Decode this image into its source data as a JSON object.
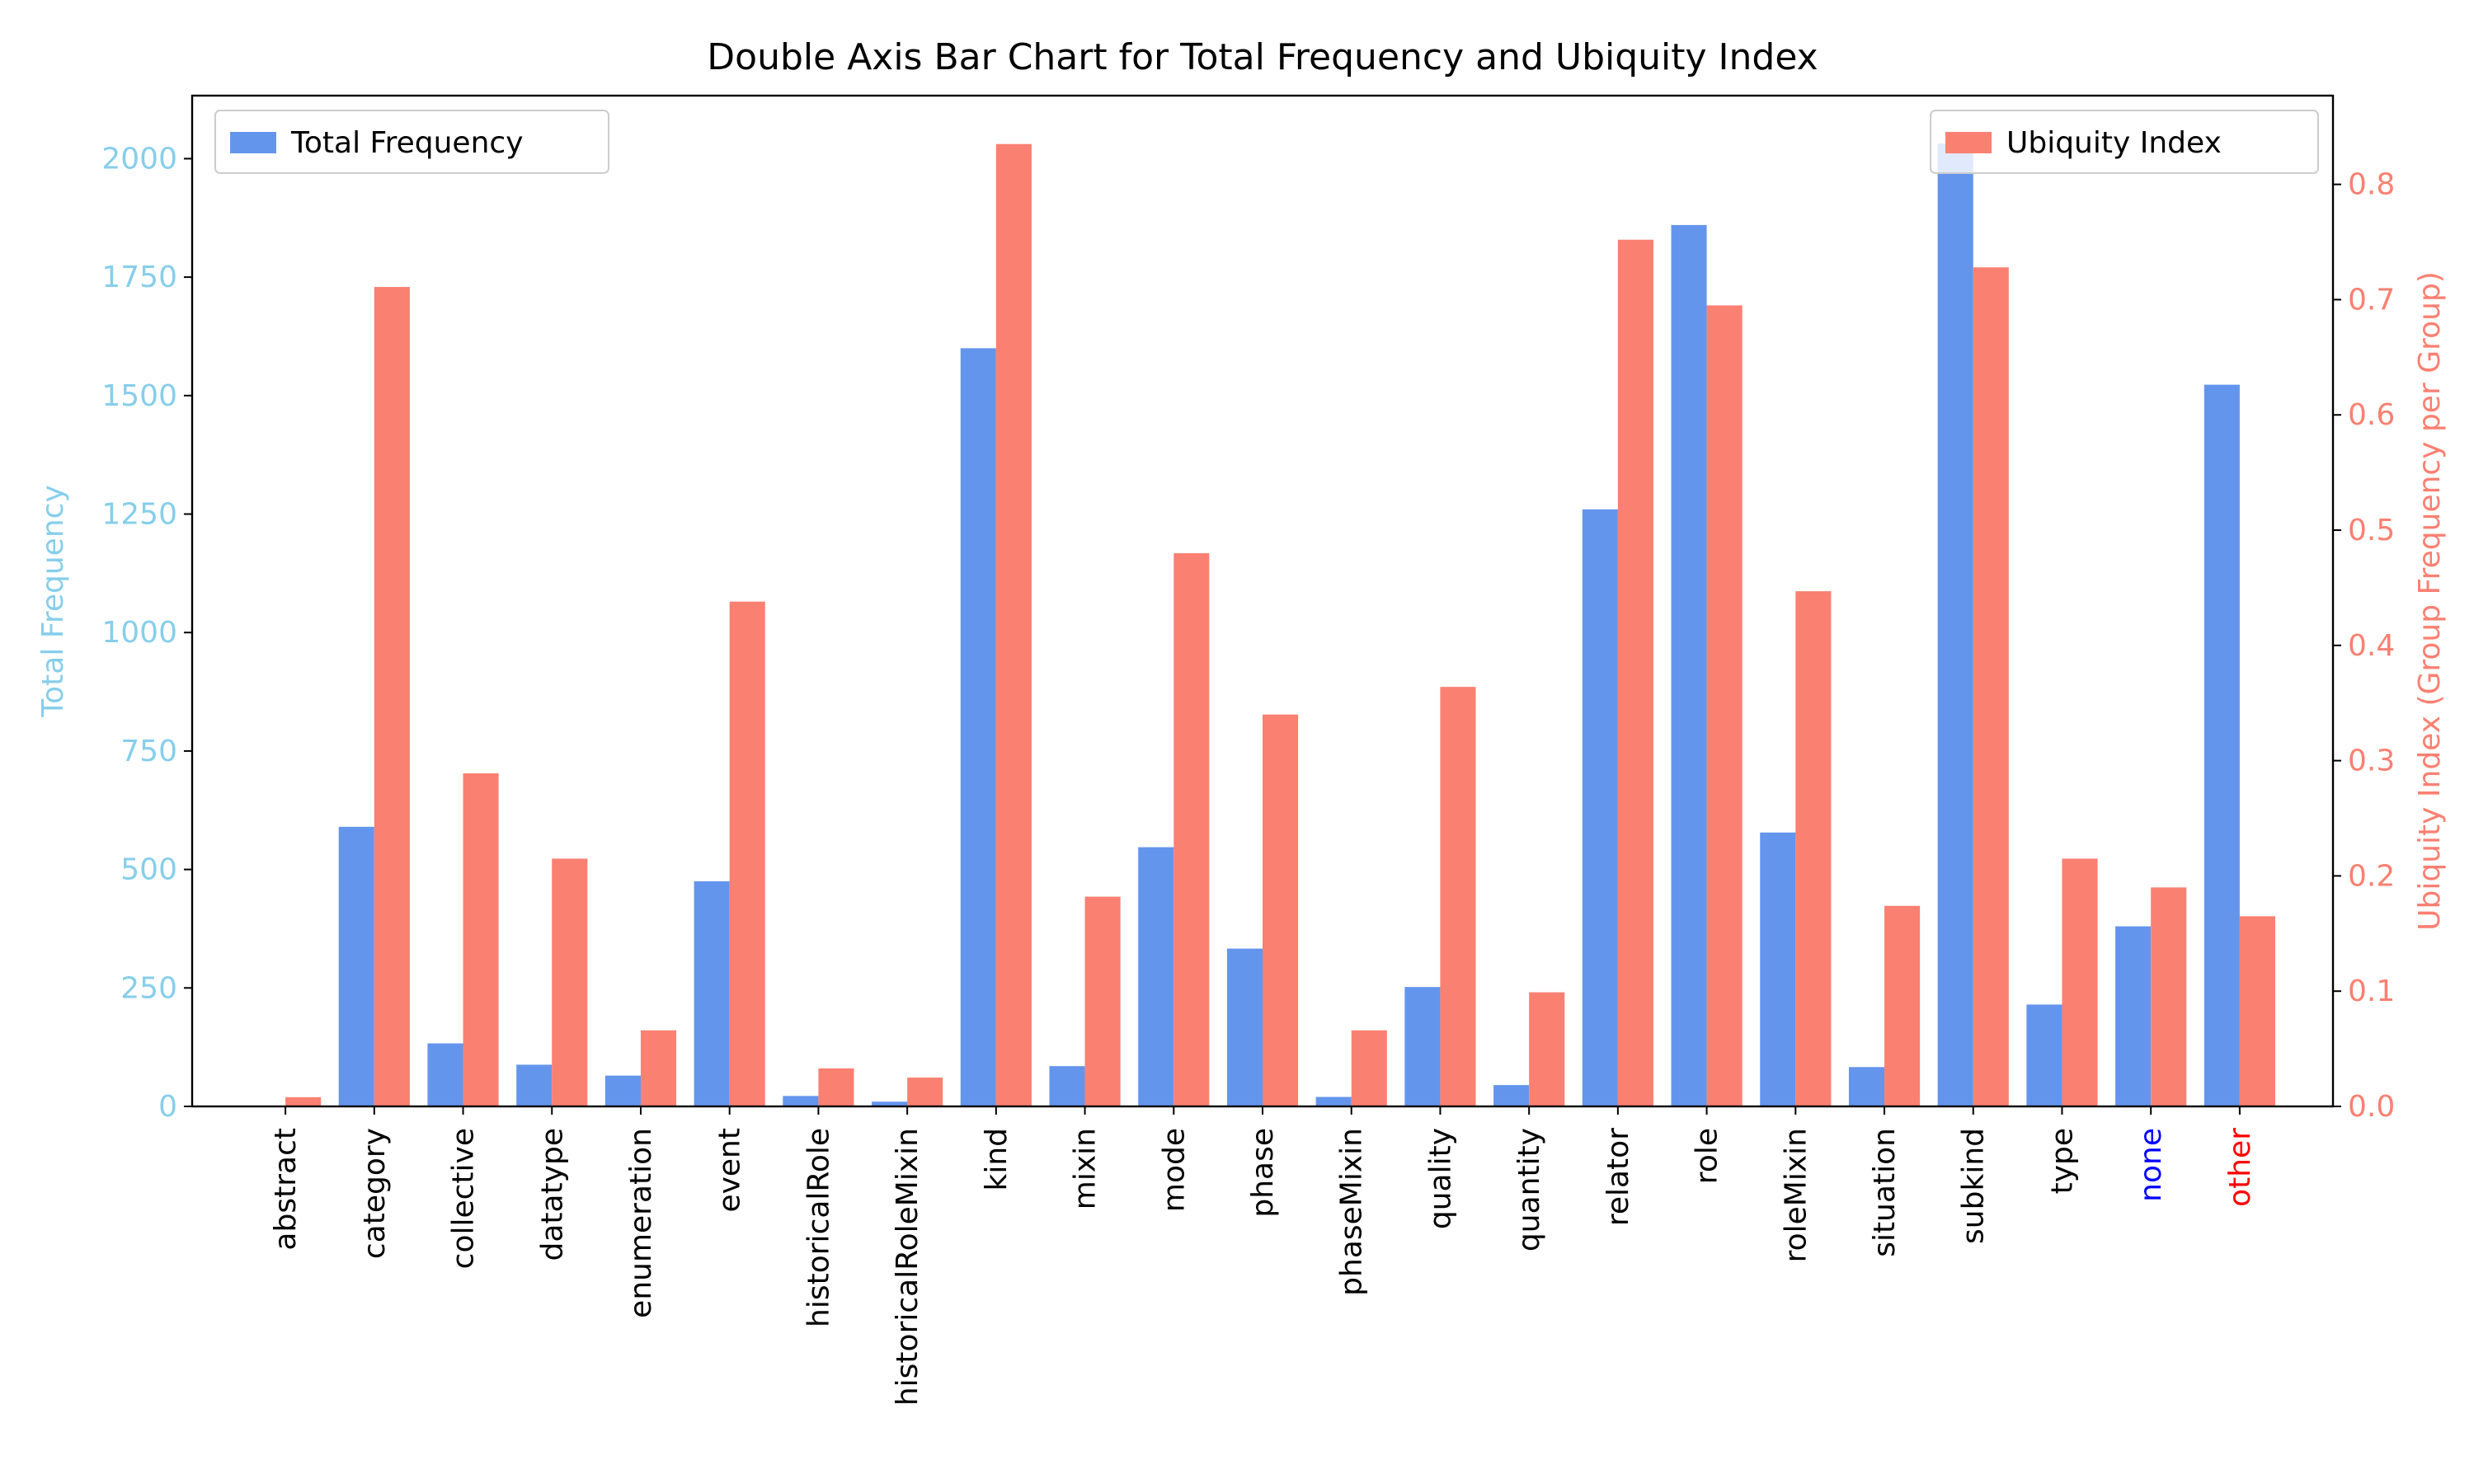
{
  "chart_data": {
    "type": "bar",
    "title": "Double Axis Bar Chart for Total Frequency and Ubiquity Index",
    "categories": [
      "abstract",
      "category",
      "collective",
      "datatype",
      "enumeration",
      "event",
      "historicalRole",
      "historicalRoleMixin",
      "kind",
      "mixin",
      "mode",
      "phase",
      "phaseMixin",
      "quality",
      "quantity",
      "relator",
      "role",
      "roleMixin",
      "situation",
      "subkind",
      "type",
      "none",
      "other"
    ],
    "category_label_colors": {
      "none": "#0000ff",
      "other": "#ff0000"
    },
    "series": [
      {
        "name": "Total Frequency",
        "axis": "left",
        "color": "#6495ed",
        "values": [
          0,
          590,
          133,
          88,
          65,
          475,
          22,
          10,
          1600,
          85,
          547,
          333,
          20,
          252,
          45,
          1260,
          1860,
          578,
          83,
          2032,
          215,
          380,
          1523
        ]
      },
      {
        "name": "Ubiquity Index",
        "axis": "right",
        "color": "#fa8072",
        "values": [
          0.008,
          0.711,
          0.289,
          0.215,
          0.066,
          0.438,
          0.033,
          0.025,
          0.835,
          0.182,
          0.48,
          0.34,
          0.066,
          0.364,
          0.099,
          0.752,
          0.695,
          0.447,
          0.174,
          0.728,
          0.215,
          0.19,
          0.165
        ]
      }
    ],
    "ylabel_left": "Total Frequency",
    "ylabel_right": "Ubiquity Index (Group Frequency per Group)",
    "ylim_left": [
      0,
      2133
    ],
    "ylim_right": [
      0,
      0.877
    ],
    "yticks_left": [
      0,
      250,
      500,
      750,
      1000,
      1250,
      1500,
      1750,
      2000
    ],
    "yticks_right": [
      0.0,
      0.1,
      0.2,
      0.3,
      0.4,
      0.5,
      0.6,
      0.7,
      0.8
    ],
    "left_axis_color": "#87ceeb",
    "right_axis_color": "#fa8072",
    "legend_left_position": "top-left",
    "legend_right_position": "top-right",
    "grid": false
  }
}
